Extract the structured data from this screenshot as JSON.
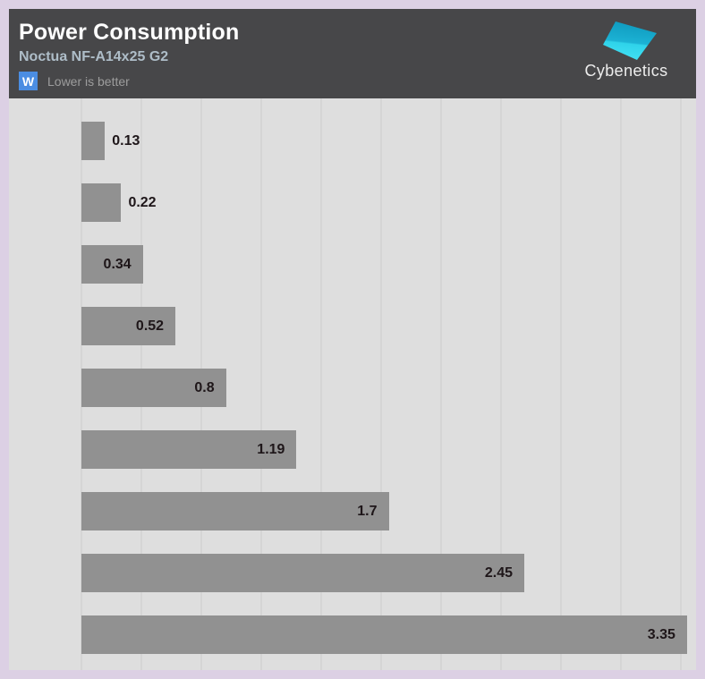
{
  "header": {
    "title": "Power Consumption",
    "subtitle": "Noctua NF-A14x25 G2",
    "unit_badge": "W",
    "note": "Lower is better",
    "logo_text": "Cybenetics"
  },
  "chart_data": {
    "type": "bar",
    "orientation": "horizontal",
    "title": "Power Consumption",
    "subtitle": "Noctua NF-A14x25 G2",
    "unit": "W",
    "note": "Lower is better",
    "values": [
      0.13,
      0.22,
      0.34,
      0.52,
      0.8,
      1.19,
      1.7,
      2.45,
      3.35
    ],
    "value_labels": [
      "0.13",
      "0.22",
      "0.34",
      "0.52",
      "0.8",
      "1.19",
      "1.7",
      "2.45",
      "3.35"
    ],
    "xlim": [
      0,
      3.4
    ],
    "grid": "vertical",
    "gridline_count": 11,
    "legend": "none",
    "axis_tick_labels": "none",
    "bar_color": "#919191",
    "label_color": "#1e1619",
    "plot_bg": "#dedede"
  },
  "colors": {
    "outer_border": "#dcd0e4",
    "header_bg": "#474749",
    "title_text": "#ffffff",
    "subtitle_text": "#aebdc8",
    "badge_blue": "#4b8de2",
    "note_gray": "#9d9d9d",
    "gridline": "#d5d5d5",
    "logo_cyan_top": "#14a0c2",
    "logo_cyan_bottom": "#45e2f5"
  }
}
